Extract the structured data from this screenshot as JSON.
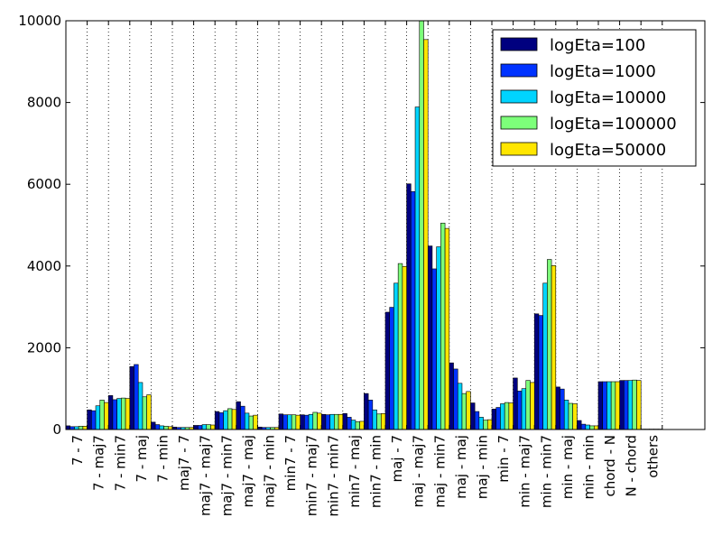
{
  "chart_data": {
    "type": "bar",
    "title": "",
    "xlabel": "",
    "ylabel": "",
    "ylim": [
      0,
      10000
    ],
    "yticks": [
      0,
      2000,
      4000,
      6000,
      8000,
      10000
    ],
    "ytick_labels": [
      "0",
      "2000",
      "4000",
      "6000",
      "8000",
      "10000"
    ],
    "grid": "vertical dotted lines at category ticks",
    "legend_position": "top-right",
    "categories": [
      "7 - 7",
      "7 - maj7",
      "7 - min7",
      "7 - maj",
      "7 - min",
      "maj7 - 7",
      "maj7 - maj7",
      "maj7 - min7",
      "maj7 - maj",
      "maj7 - min",
      "min7 - 7",
      "min7 - maj7",
      "min7 - min7",
      "min7 - maj",
      "min7 - min",
      "maj - 7",
      "maj - maj7",
      "maj - min7",
      "maj - maj",
      "maj - min",
      "min - 7",
      "min - maj7",
      "min - min7",
      "min - maj",
      "min - min",
      "chord - N",
      "N - chord",
      "others"
    ],
    "series": [
      {
        "name": "logEta=100",
        "color": "#00007f",
        "values": [
          90,
          480,
          830,
          1540,
          180,
          60,
          100,
          440,
          680,
          60,
          380,
          360,
          370,
          390,
          880,
          2870,
          6010,
          4490,
          1630,
          650,
          500,
          1260,
          2830,
          1040,
          220,
          1170,
          1200,
          10
        ]
      },
      {
        "name": "logEta=1000",
        "color": "#0033ff",
        "values": [
          70,
          460,
          730,
          1590,
          120,
          50,
          100,
          410,
          570,
          50,
          360,
          350,
          360,
          300,
          720,
          2990,
          5820,
          3930,
          1480,
          440,
          540,
          940,
          2790,
          990,
          130,
          1170,
          1200,
          10
        ]
      },
      {
        "name": "logEta=10000",
        "color": "#00d4ff",
        "values": [
          70,
          580,
          760,
          1150,
          90,
          50,
          120,
          460,
          400,
          50,
          360,
          370,
          370,
          230,
          480,
          3580,
          7890,
          4470,
          1130,
          300,
          630,
          1000,
          3580,
          720,
          110,
          1170,
          1200,
          10
        ]
      },
      {
        "name": "logEta=100000",
        "color": "#7dff7a",
        "values": [
          80,
          720,
          770,
          800,
          80,
          50,
          120,
          510,
          330,
          50,
          360,
          420,
          370,
          190,
          380,
          4060,
          10000,
          5050,
          880,
          230,
          660,
          1200,
          4160,
          640,
          90,
          1170,
          1210,
          10
        ]
      },
      {
        "name": "logEta=50000",
        "color": "#ffe600",
        "values": [
          80,
          660,
          760,
          850,
          70,
          50,
          110,
          490,
          350,
          50,
          350,
          400,
          370,
          200,
          390,
          3990,
          9540,
          4920,
          930,
          240,
          650,
          1150,
          4010,
          630,
          90,
          1170,
          1200,
          10
        ]
      }
    ]
  }
}
